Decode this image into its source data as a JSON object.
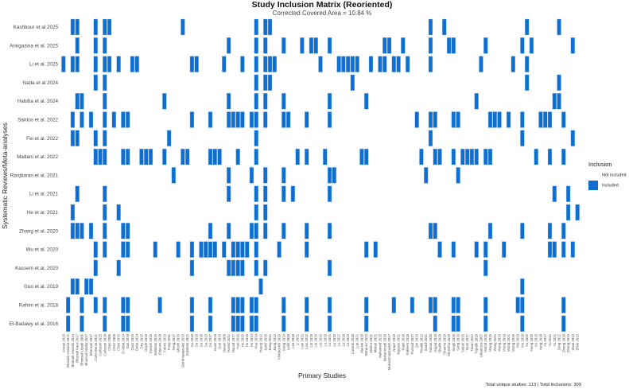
{
  "chart_data": {
    "type": "heatmap",
    "title": "Study Inclusion Matrix (Reoriented)",
    "subtitle": "Corrected Covered Area = 10.84 %",
    "xlabel": "Primary Studies",
    "ylabel": "Systematic Reviews/Meta-analyses",
    "legend": {
      "title": "Inclusion",
      "position": "right",
      "items": [
        {
          "label": "Not included",
          "color": "#ffffff"
        },
        {
          "label": "Included",
          "color": "#0f6fd0"
        }
      ]
    },
    "footer": "Total unique studies: 113 | Total inclusions: 309",
    "rows": [
      {
        "label": "Kashbour et al 2025",
        "included": [
          2,
          3,
          7,
          9,
          10,
          26,
          42,
          44,
          45,
          80,
          83,
          101,
          108
        ]
      },
      {
        "label": "Aringazina et al. 2025",
        "included": [
          3,
          7,
          9,
          36,
          42,
          44,
          48,
          52,
          54,
          55,
          58,
          70,
          71,
          74,
          80,
          84,
          85,
          92,
          100,
          102,
          111
        ]
      },
      {
        "label": "Li et al. 2025",
        "included": [
          0,
          2,
          3,
          7,
          9,
          10,
          12,
          15,
          16,
          28,
          29,
          35,
          39,
          42,
          44,
          45,
          46,
          56,
          60,
          61,
          62,
          63,
          64,
          67,
          69,
          70,
          72,
          73,
          75,
          80,
          91,
          98,
          101
        ]
      },
      {
        "label": "Nada et al 2024",
        "included": [
          7,
          9,
          42,
          44,
          45,
          63,
          101,
          108
        ]
      },
      {
        "label": "Habiba et al. 2024",
        "included": [
          3,
          4,
          9,
          22,
          36,
          42,
          44,
          48,
          58,
          66,
          90,
          107,
          108
        ]
      },
      {
        "label": "Santos et al. 2022",
        "included": [
          2,
          4,
          6,
          9,
          11,
          13,
          14,
          28,
          32,
          36,
          37,
          38,
          39,
          41,
          42,
          44,
          48,
          49,
          53,
          58,
          77,
          80,
          81,
          85,
          86,
          93,
          94,
          95,
          97,
          100,
          104,
          105,
          106,
          109
        ]
      },
      {
        "label": "Fei et al. 2022",
        "included": [
          2,
          3,
          7,
          9,
          23,
          42,
          80,
          100,
          111
        ]
      },
      {
        "label": "Madani et al. 2022",
        "included": [
          7,
          8,
          9,
          13,
          14,
          17,
          18,
          19,
          22,
          26,
          27,
          32,
          33,
          34,
          38,
          42,
          51,
          53,
          57,
          65,
          66,
          78,
          81,
          82,
          85,
          87,
          88,
          89,
          90,
          92,
          93,
          103,
          106,
          109
        ]
      },
      {
        "label": "Ranjbaran et al. 2021",
        "included": [
          24,
          36,
          41,
          44,
          48,
          58,
          59,
          79,
          86
        ]
      },
      {
        "label": "Li et al. 2021",
        "included": [
          3,
          9,
          36,
          42,
          44,
          48,
          50,
          58,
          107,
          110
        ]
      },
      {
        "label": "He et al. 2021",
        "included": [
          2,
          9,
          12,
          42,
          44,
          110,
          112
        ]
      },
      {
        "label": "Zhang et al. 2020",
        "included": [
          2,
          3,
          4,
          6,
          9,
          13,
          14,
          32,
          36,
          41,
          42,
          44,
          48,
          53,
          58,
          80,
          81,
          93,
          100,
          106,
          109
        ]
      },
      {
        "label": "Wu et al. 2020",
        "included": [
          7,
          9,
          13,
          14,
          20,
          25,
          28,
          30,
          31,
          32,
          33,
          35,
          37,
          38,
          39,
          40,
          42,
          47,
          53,
          66,
          68,
          82,
          85,
          90,
          92,
          96,
          106,
          107,
          109,
          111
        ]
      },
      {
        "label": "Kassem et al. 2020",
        "included": [
          7,
          12,
          28,
          36,
          37,
          38,
          39,
          42,
          44,
          58,
          92
        ]
      },
      {
        "label": "Guo et al. 2019",
        "included": [
          2,
          3,
          5,
          6,
          43,
          100
        ]
      },
      {
        "label": "Rahim et al. 2018",
        "included": [
          1,
          4,
          7,
          9,
          13,
          14,
          21,
          28,
          32,
          37,
          38,
          39,
          41,
          42,
          48,
          53,
          58,
          66,
          72,
          76,
          80,
          81,
          85,
          86,
          92,
          99,
          100,
          109
        ]
      },
      {
        "label": "El-Badawy et al. 2016",
        "included": [
          1,
          4,
          9,
          13,
          14,
          28,
          32,
          37,
          38,
          39,
          41,
          42,
          48,
          53,
          58,
          66,
          81,
          85,
          86,
          92,
          100,
          109
        ]
      }
    ],
    "columns": [
      "Araujo 2023",
      "Bharadi Anwaria 2021",
      "Bharadi Awasthi 2014",
      "Bharadi Kaur 2017",
      "Bhansali Upadi 2009",
      "Bhansali Nadia 2017",
      "Bhansali 2017",
      "Carlo-Benta 2021",
      "Carlsson 2015",
      "Carlsson 2018",
      "Chen 2006",
      "Chen 2009",
      "Chen 2019",
      "D'Abbo 2014",
      "Das 2018",
      "Dass 2019",
      "Datta 2014",
      "Dey 2015",
      "Doyle 2015",
      "Dresch 2015",
      "Esteban 2019",
      "Esteves 2018",
      "Fabris 2019",
      "Fang 2011",
      "Feng 2017",
      "Ghosh 2019",
      "Giordmaopoulos 2013",
      "Gobbato 2021",
      "Gu 2010",
      "Gu 2016",
      "Gu 2018",
      "Gu 2019",
      "Gu 2017",
      "Guan 2018",
      "Guo 2019",
      "Hasan 2009",
      "Hamid 2011",
      "Hamid 2017",
      "Han 2016",
      "Hu 2015",
      "Hu 2016",
      "Hu 2014",
      "Hua 2014",
      "Huang 2012",
      "Jamil 2020",
      "Jiang 2011",
      "Jiang 2013",
      "Khlebovich 2019",
      "Kong 2014",
      "Lakh 2020",
      "Lee 2018",
      "Li 2021",
      "Lian 2022",
      "Liao 2022",
      "Lin 2019",
      "Liu 2016",
      "Liu 2019",
      "Lu 2019",
      "Lu 2021",
      "Lu 2010",
      "Lu 2022",
      "Lu 2020",
      "Lu 2023",
      "Lunardi 2020",
      "Luo 2021",
      "Mamie 2020",
      "Marquez 2023",
      "Mishra 2021",
      "Mistari 2021",
      "Mohamed 2015",
      "Mohammadi 2018",
      "Mohammadzadeh 2017",
      "Naqvi 2019",
      "Nguyen 2021",
      "Patel 2018",
      "Pokkers 2016",
      "Pursaid 2017",
      "Qin 2019",
      "Rinaldi 2012",
      "Saadi 2011",
      "Sahoo 2020",
      "Sajjad 2015",
      "Shaikh 2019",
      "Sharma 2018",
      "Shrestha 2015",
      "Singh 2020",
      "Song 2019",
      "Sultan 2015",
      "Tanni 2017",
      "Tiwari 2011",
      "Tripathi 2019",
      "Urbanova 2007",
      "Wahid 2020",
      "Wang 2015",
      "Wang 2011",
      "Wang 2019",
      "Wang 2016",
      "Wang 2021",
      "Wong 2019",
      "Wu 2019",
      "Wu 2020",
      "Xu 2022",
      "Xiong 2019",
      "Xu 2019",
      "Yang 2018",
      "Yu 2017",
      "Yu 2011",
      "Yu 2021",
      "Zeng 2022",
      "Zhang 2018",
      "Zhang 2019",
      "Zhao 2013",
      "Zhou 2013"
    ]
  }
}
